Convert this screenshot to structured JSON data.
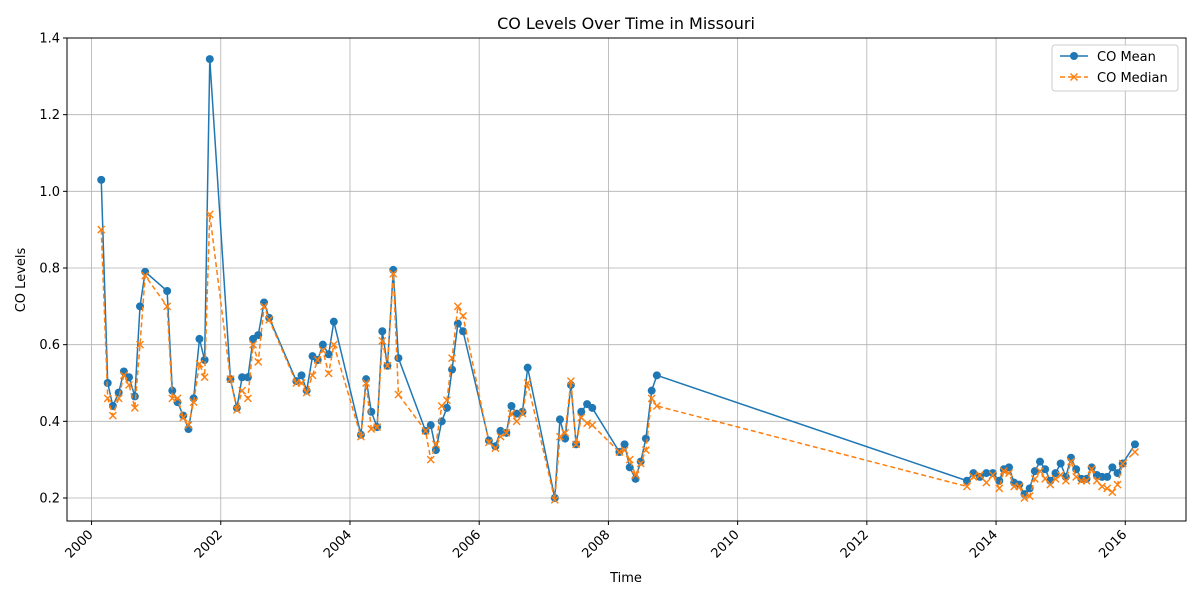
{
  "chart_data": {
    "type": "line",
    "title": "CO Levels Over Time in Missouri",
    "xlabel": "Time",
    "ylabel": "CO Levels",
    "xlim": [
      1999.62,
      2016.94
    ],
    "ylim": [
      0.14,
      1.4
    ],
    "x_ticks": [
      2000,
      2002,
      2004,
      2006,
      2008,
      2010,
      2012,
      2014,
      2016
    ],
    "x_tick_labels": [
      "2000",
      "2002",
      "2004",
      "2006",
      "2008",
      "2010",
      "2012",
      "2014",
      "2016"
    ],
    "y_ticks": [
      0.2,
      0.4,
      0.6,
      0.8,
      1.0,
      1.2,
      1.4
    ],
    "y_tick_labels": [
      "0.2",
      "0.4",
      "0.6",
      "0.8",
      "1.0",
      "1.2",
      "1.4"
    ],
    "grid": true,
    "legend_position": "top-right",
    "series": [
      {
        "name": "CO Mean",
        "color": "#1f77b4",
        "marker": "circle",
        "line_style": "solid",
        "points": [
          [
            2000.15,
            1.03
          ],
          [
            2000.25,
            0.5
          ],
          [
            2000.33,
            0.44
          ],
          [
            2000.42,
            0.475
          ],
          [
            2000.5,
            0.53
          ],
          [
            2000.58,
            0.515
          ],
          [
            2000.67,
            0.465
          ],
          [
            2000.75,
            0.7
          ],
          [
            2000.83,
            0.79
          ],
          [
            2001.17,
            0.74
          ],
          [
            2001.25,
            0.48
          ],
          [
            2001.33,
            0.45
          ],
          [
            2001.42,
            0.415
          ],
          [
            2001.5,
            0.38
          ],
          [
            2001.58,
            0.46
          ],
          [
            2001.67,
            0.615
          ],
          [
            2001.75,
            0.56
          ],
          [
            2001.83,
            1.345
          ],
          [
            2002.15,
            0.51
          ],
          [
            2002.25,
            0.435
          ],
          [
            2002.33,
            0.515
          ],
          [
            2002.42,
            0.515
          ],
          [
            2002.5,
            0.615
          ],
          [
            2002.58,
            0.625
          ],
          [
            2002.67,
            0.71
          ],
          [
            2002.75,
            0.67
          ],
          [
            2003.17,
            0.505
          ],
          [
            2003.25,
            0.52
          ],
          [
            2003.33,
            0.48
          ],
          [
            2003.42,
            0.57
          ],
          [
            2003.5,
            0.56
          ],
          [
            2003.58,
            0.6
          ],
          [
            2003.67,
            0.575
          ],
          [
            2003.75,
            0.66
          ],
          [
            2004.17,
            0.365
          ],
          [
            2004.25,
            0.51
          ],
          [
            2004.33,
            0.425
          ],
          [
            2004.42,
            0.385
          ],
          [
            2004.5,
            0.635
          ],
          [
            2004.58,
            0.545
          ],
          [
            2004.67,
            0.795
          ],
          [
            2004.75,
            0.565
          ],
          [
            2005.17,
            0.375
          ],
          [
            2005.25,
            0.39
          ],
          [
            2005.33,
            0.325
          ],
          [
            2005.42,
            0.4
          ],
          [
            2005.5,
            0.435
          ],
          [
            2005.58,
            0.535
          ],
          [
            2005.67,
            0.655
          ],
          [
            2005.75,
            0.635
          ],
          [
            2006.15,
            0.35
          ],
          [
            2006.25,
            0.335
          ],
          [
            2006.33,
            0.375
          ],
          [
            2006.42,
            0.37
          ],
          [
            2006.5,
            0.44
          ],
          [
            2006.58,
            0.42
          ],
          [
            2006.67,
            0.425
          ],
          [
            2006.75,
            0.54
          ],
          [
            2007.17,
            0.2
          ],
          [
            2007.25,
            0.405
          ],
          [
            2007.33,
            0.355
          ],
          [
            2007.42,
            0.495
          ],
          [
            2007.5,
            0.34
          ],
          [
            2007.58,
            0.425
          ],
          [
            2007.67,
            0.445
          ],
          [
            2007.75,
            0.435
          ],
          [
            2008.17,
            0.32
          ],
          [
            2008.25,
            0.34
          ],
          [
            2008.33,
            0.28
          ],
          [
            2008.42,
            0.25
          ],
          [
            2008.5,
            0.295
          ],
          [
            2008.58,
            0.355
          ],
          [
            2008.67,
            0.48
          ],
          [
            2008.75,
            0.52
          ],
          [
            2013.55,
            0.245
          ],
          [
            2013.65,
            0.265
          ],
          [
            2013.75,
            0.255
          ],
          [
            2013.85,
            0.265
          ],
          [
            2013.95,
            0.265
          ],
          [
            2014.05,
            0.245
          ],
          [
            2014.12,
            0.275
          ],
          [
            2014.2,
            0.28
          ],
          [
            2014.28,
            0.24
          ],
          [
            2014.36,
            0.235
          ],
          [
            2014.44,
            0.21
          ],
          [
            2014.52,
            0.225
          ],
          [
            2014.6,
            0.27
          ],
          [
            2014.68,
            0.295
          ],
          [
            2014.76,
            0.275
          ],
          [
            2014.84,
            0.245
          ],
          [
            2014.92,
            0.265
          ],
          [
            2015.0,
            0.29
          ],
          [
            2015.08,
            0.255
          ],
          [
            2015.16,
            0.305
          ],
          [
            2015.24,
            0.275
          ],
          [
            2015.32,
            0.25
          ],
          [
            2015.4,
            0.25
          ],
          [
            2015.48,
            0.28
          ],
          [
            2015.56,
            0.26
          ],
          [
            2015.64,
            0.255
          ],
          [
            2015.72,
            0.255
          ],
          [
            2015.8,
            0.28
          ],
          [
            2015.88,
            0.265
          ],
          [
            2015.96,
            0.29
          ],
          [
            2016.15,
            0.34
          ]
        ]
      },
      {
        "name": "CO Median",
        "color": "#ff7f0e",
        "marker": "x",
        "line_style": "dashed",
        "points": [
          [
            2000.15,
            0.9
          ],
          [
            2000.25,
            0.46
          ],
          [
            2000.33,
            0.415
          ],
          [
            2000.42,
            0.46
          ],
          [
            2000.5,
            0.52
          ],
          [
            2000.58,
            0.495
          ],
          [
            2000.67,
            0.435
          ],
          [
            2000.75,
            0.6
          ],
          [
            2000.83,
            0.78
          ],
          [
            2001.17,
            0.7
          ],
          [
            2001.25,
            0.46
          ],
          [
            2001.33,
            0.46
          ],
          [
            2001.42,
            0.41
          ],
          [
            2001.5,
            0.39
          ],
          [
            2001.58,
            0.45
          ],
          [
            2001.67,
            0.55
          ],
          [
            2001.75,
            0.515
          ],
          [
            2001.83,
            0.94
          ],
          [
            2002.15,
            0.51
          ],
          [
            2002.25,
            0.43
          ],
          [
            2002.33,
            0.48
          ],
          [
            2002.42,
            0.46
          ],
          [
            2002.5,
            0.6
          ],
          [
            2002.58,
            0.555
          ],
          [
            2002.67,
            0.7
          ],
          [
            2002.75,
            0.665
          ],
          [
            2003.17,
            0.5
          ],
          [
            2003.25,
            0.5
          ],
          [
            2003.33,
            0.475
          ],
          [
            2003.42,
            0.52
          ],
          [
            2003.5,
            0.56
          ],
          [
            2003.58,
            0.585
          ],
          [
            2003.67,
            0.525
          ],
          [
            2003.75,
            0.6
          ],
          [
            2004.17,
            0.36
          ],
          [
            2004.25,
            0.5
          ],
          [
            2004.33,
            0.38
          ],
          [
            2004.42,
            0.385
          ],
          [
            2004.5,
            0.61
          ],
          [
            2004.58,
            0.545
          ],
          [
            2004.67,
            0.785
          ],
          [
            2004.75,
            0.47
          ],
          [
            2005.17,
            0.375
          ],
          [
            2005.25,
            0.3
          ],
          [
            2005.33,
            0.34
          ],
          [
            2005.42,
            0.44
          ],
          [
            2005.5,
            0.455
          ],
          [
            2005.58,
            0.565
          ],
          [
            2005.67,
            0.7
          ],
          [
            2005.75,
            0.675
          ],
          [
            2006.15,
            0.345
          ],
          [
            2006.25,
            0.33
          ],
          [
            2006.33,
            0.36
          ],
          [
            2006.42,
            0.37
          ],
          [
            2006.5,
            0.42
          ],
          [
            2006.58,
            0.4
          ],
          [
            2006.67,
            0.42
          ],
          [
            2006.75,
            0.5
          ],
          [
            2007.17,
            0.195
          ],
          [
            2007.25,
            0.36
          ],
          [
            2007.33,
            0.37
          ],
          [
            2007.42,
            0.505
          ],
          [
            2007.5,
            0.34
          ],
          [
            2007.58,
            0.41
          ],
          [
            2007.67,
            0.395
          ],
          [
            2007.75,
            0.39
          ],
          [
            2008.17,
            0.32
          ],
          [
            2008.25,
            0.325
          ],
          [
            2008.33,
            0.3
          ],
          [
            2008.42,
            0.26
          ],
          [
            2008.5,
            0.29
          ],
          [
            2008.58,
            0.325
          ],
          [
            2008.67,
            0.46
          ],
          [
            2008.75,
            0.44
          ],
          [
            2013.55,
            0.23
          ],
          [
            2013.65,
            0.255
          ],
          [
            2013.75,
            0.26
          ],
          [
            2013.85,
            0.24
          ],
          [
            2013.95,
            0.26
          ],
          [
            2014.05,
            0.225
          ],
          [
            2014.12,
            0.27
          ],
          [
            2014.2,
            0.265
          ],
          [
            2014.28,
            0.23
          ],
          [
            2014.36,
            0.23
          ],
          [
            2014.44,
            0.2
          ],
          [
            2014.52,
            0.205
          ],
          [
            2014.6,
            0.25
          ],
          [
            2014.68,
            0.27
          ],
          [
            2014.76,
            0.25
          ],
          [
            2014.84,
            0.235
          ],
          [
            2014.92,
            0.25
          ],
          [
            2015.0,
            0.26
          ],
          [
            2015.08,
            0.245
          ],
          [
            2015.16,
            0.295
          ],
          [
            2015.24,
            0.255
          ],
          [
            2015.32,
            0.245
          ],
          [
            2015.4,
            0.245
          ],
          [
            2015.48,
            0.275
          ],
          [
            2015.56,
            0.245
          ],
          [
            2015.64,
            0.23
          ],
          [
            2015.72,
            0.225
          ],
          [
            2015.8,
            0.215
          ],
          [
            2015.88,
            0.235
          ],
          [
            2015.96,
            0.29
          ],
          [
            2016.15,
            0.32
          ]
        ]
      }
    ]
  }
}
